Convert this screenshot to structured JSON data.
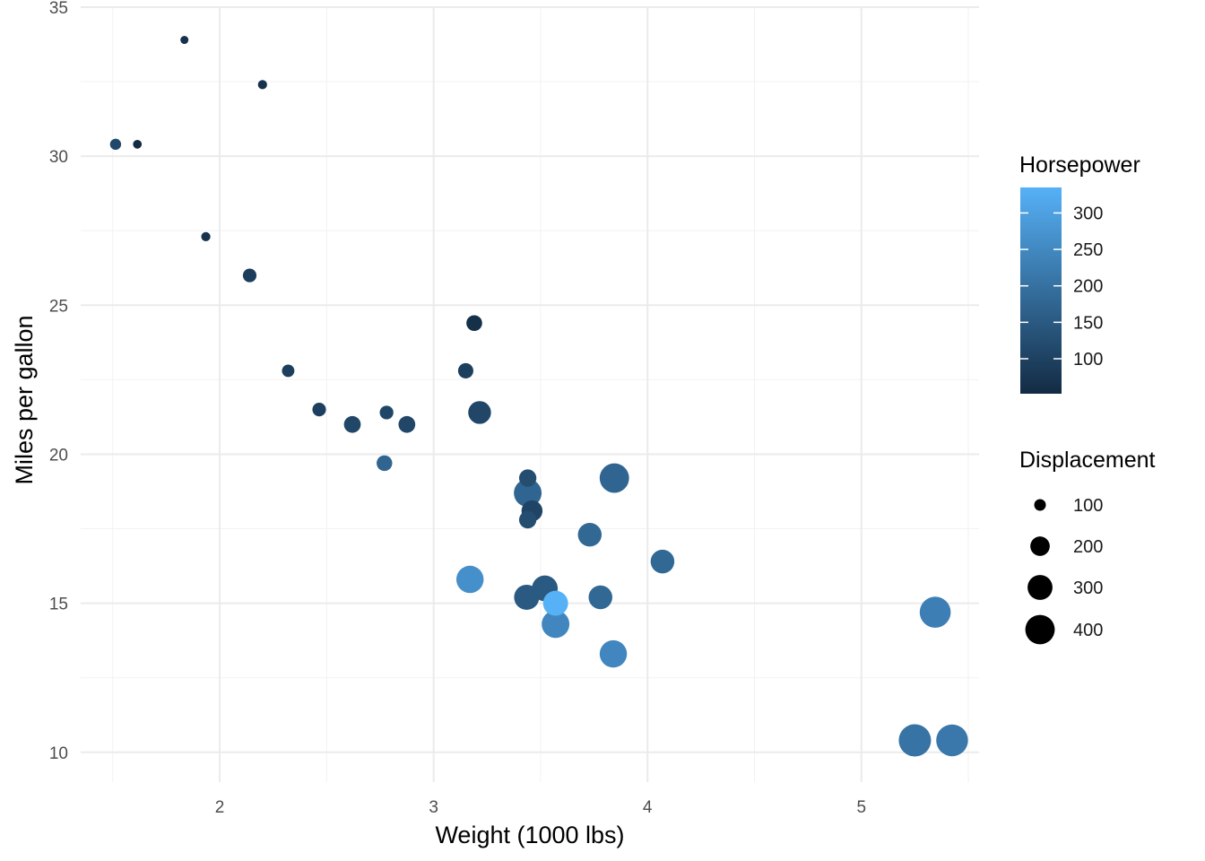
{
  "chart_data": {
    "type": "scatter",
    "title": "",
    "xlabel": "Weight (1000 lbs)",
    "ylabel": "Miles per gallon",
    "xlim": [
      1.35,
      5.55
    ],
    "ylim": [
      9.0,
      35.0
    ],
    "x_ticks": [
      2,
      3,
      4,
      5
    ],
    "x_tick_labels": [
      "2",
      "3",
      "4",
      "5"
    ],
    "y_ticks": [
      10,
      15,
      20,
      25,
      30,
      35
    ],
    "y_tick_labels": [
      "10",
      "15",
      "20",
      "25",
      "30",
      "35"
    ],
    "grid": true,
    "color_legend": {
      "title": "Horsepower",
      "range": [
        52,
        335
      ],
      "ticks": [
        100,
        150,
        200,
        250,
        300
      ],
      "tick_labels": [
        "100",
        "150",
        "200",
        "250",
        "300"
      ],
      "low_color": "#132b43",
      "high_color": "#56b1f7",
      "placement": "right"
    },
    "size_legend": {
      "title": "Displacement",
      "range": [
        71.1,
        472
      ],
      "values": [
        100,
        200,
        300,
        400
      ],
      "labels": [
        "100",
        "200",
        "300",
        "400"
      ],
      "placement": "right"
    },
    "points": [
      {
        "x": 2.62,
        "y": 21.0,
        "hp": 110,
        "disp": 160.0
      },
      {
        "x": 2.875,
        "y": 21.0,
        "hp": 110,
        "disp": 160.0
      },
      {
        "x": 2.32,
        "y": 22.8,
        "hp": 93,
        "disp": 108.0
      },
      {
        "x": 3.215,
        "y": 21.4,
        "hp": 110,
        "disp": 258.0
      },
      {
        "x": 3.44,
        "y": 18.7,
        "hp": 175,
        "disp": 360.0
      },
      {
        "x": 3.46,
        "y": 18.1,
        "hp": 105,
        "disp": 225.0
      },
      {
        "x": 3.57,
        "y": 14.3,
        "hp": 245,
        "disp": 360.0
      },
      {
        "x": 3.19,
        "y": 24.4,
        "hp": 62,
        "disp": 146.7
      },
      {
        "x": 3.15,
        "y": 22.8,
        "hp": 95,
        "disp": 140.8
      },
      {
        "x": 3.44,
        "y": 19.2,
        "hp": 123,
        "disp": 167.6
      },
      {
        "x": 3.44,
        "y": 17.8,
        "hp": 123,
        "disp": 167.6
      },
      {
        "x": 4.07,
        "y": 16.4,
        "hp": 180,
        "disp": 275.8
      },
      {
        "x": 3.73,
        "y": 17.3,
        "hp": 180,
        "disp": 275.8
      },
      {
        "x": 3.78,
        "y": 15.2,
        "hp": 180,
        "disp": 275.8
      },
      {
        "x": 5.25,
        "y": 10.4,
        "hp": 205,
        "disp": 472.0
      },
      {
        "x": 5.424,
        "y": 10.4,
        "hp": 215,
        "disp": 460.0
      },
      {
        "x": 5.345,
        "y": 14.7,
        "hp": 230,
        "disp": 440.0
      },
      {
        "x": 2.2,
        "y": 32.4,
        "hp": 66,
        "disp": 78.7
      },
      {
        "x": 1.615,
        "y": 30.4,
        "hp": 52,
        "disp": 75.7
      },
      {
        "x": 1.835,
        "y": 33.9,
        "hp": 65,
        "disp": 71.1
      },
      {
        "x": 2.465,
        "y": 21.5,
        "hp": 97,
        "disp": 120.1
      },
      {
        "x": 3.52,
        "y": 15.5,
        "hp": 150,
        "disp": 318.0
      },
      {
        "x": 3.435,
        "y": 15.2,
        "hp": 150,
        "disp": 304.0
      },
      {
        "x": 3.84,
        "y": 13.3,
        "hp": 245,
        "disp": 350.0
      },
      {
        "x": 3.845,
        "y": 19.2,
        "hp": 175,
        "disp": 400.0
      },
      {
        "x": 1.935,
        "y": 27.3,
        "hp": 66,
        "disp": 79.0
      },
      {
        "x": 2.14,
        "y": 26.0,
        "hp": 91,
        "disp": 120.3
      },
      {
        "x": 1.513,
        "y": 30.4,
        "hp": 113,
        "disp": 95.1
      },
      {
        "x": 3.17,
        "y": 15.8,
        "hp": 264,
        "disp": 351.0
      },
      {
        "x": 2.77,
        "y": 19.7,
        "hp": 175,
        "disp": 145.0
      },
      {
        "x": 3.57,
        "y": 15.0,
        "hp": 335,
        "disp": 301.0
      },
      {
        "x": 2.78,
        "y": 21.4,
        "hp": 109,
        "disp": 121.0
      }
    ]
  }
}
